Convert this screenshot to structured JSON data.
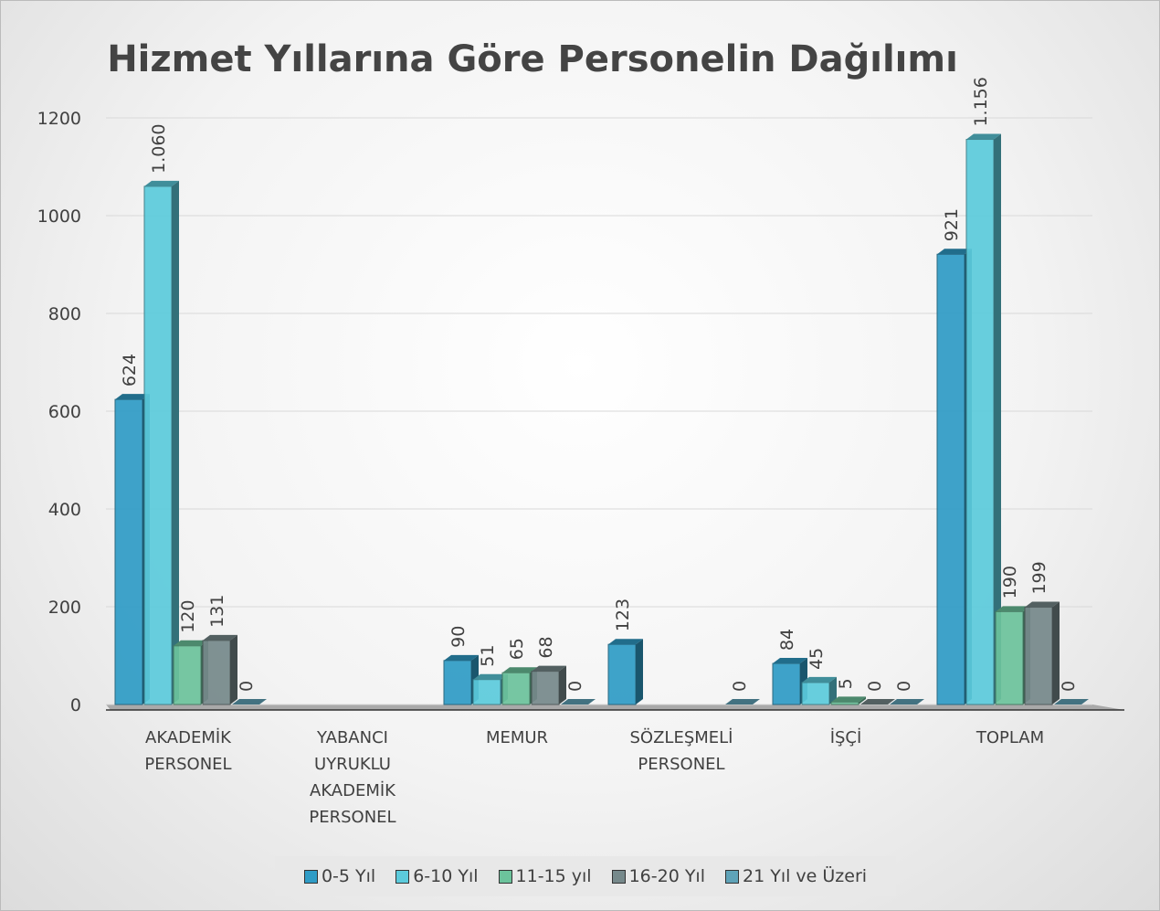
{
  "chart_data": {
    "type": "bar",
    "title": "Hizmet Yıllarına Göre Personelin Dağılımı",
    "categories": [
      "AKADEMİK PERSONEL",
      "YABANCI UYRUKLU AKADEMİK PERSONEL",
      "MEMUR",
      "SÖZLEŞMELİ PERSONEL",
      "İŞÇİ",
      "TOPLAM"
    ],
    "series": [
      {
        "name": "0-5 Yıl",
        "color": "#2f9cc6",
        "values": [
          624,
          null,
          90,
          123,
          84,
          921
        ]
      },
      {
        "name": "6-10 Yıl",
        "color": "#5ccbdc",
        "values": [
          1060,
          null,
          51,
          null,
          45,
          1156
        ],
        "value_labels": [
          "1.060",
          null,
          "51",
          null,
          "45",
          "1.156"
        ]
      },
      {
        "name": "11-15 yıl",
        "color": "#6cc39c",
        "values": [
          120,
          null,
          65,
          null,
          5,
          190
        ]
      },
      {
        "name": "16-20 Yıl",
        "color": "#76898b",
        "values": [
          131,
          null,
          68,
          null,
          0,
          199
        ]
      },
      {
        "name": "21 Yıl ve Üzeri",
        "color": "#5fa3b8",
        "values": [
          0,
          null,
          0,
          0,
          0,
          0
        ]
      }
    ],
    "ylim": [
      0,
      1200
    ],
    "yticks": [
      0,
      200,
      400,
      600,
      800,
      1000,
      1200
    ],
    "grid": true,
    "legend": "bottom"
  }
}
